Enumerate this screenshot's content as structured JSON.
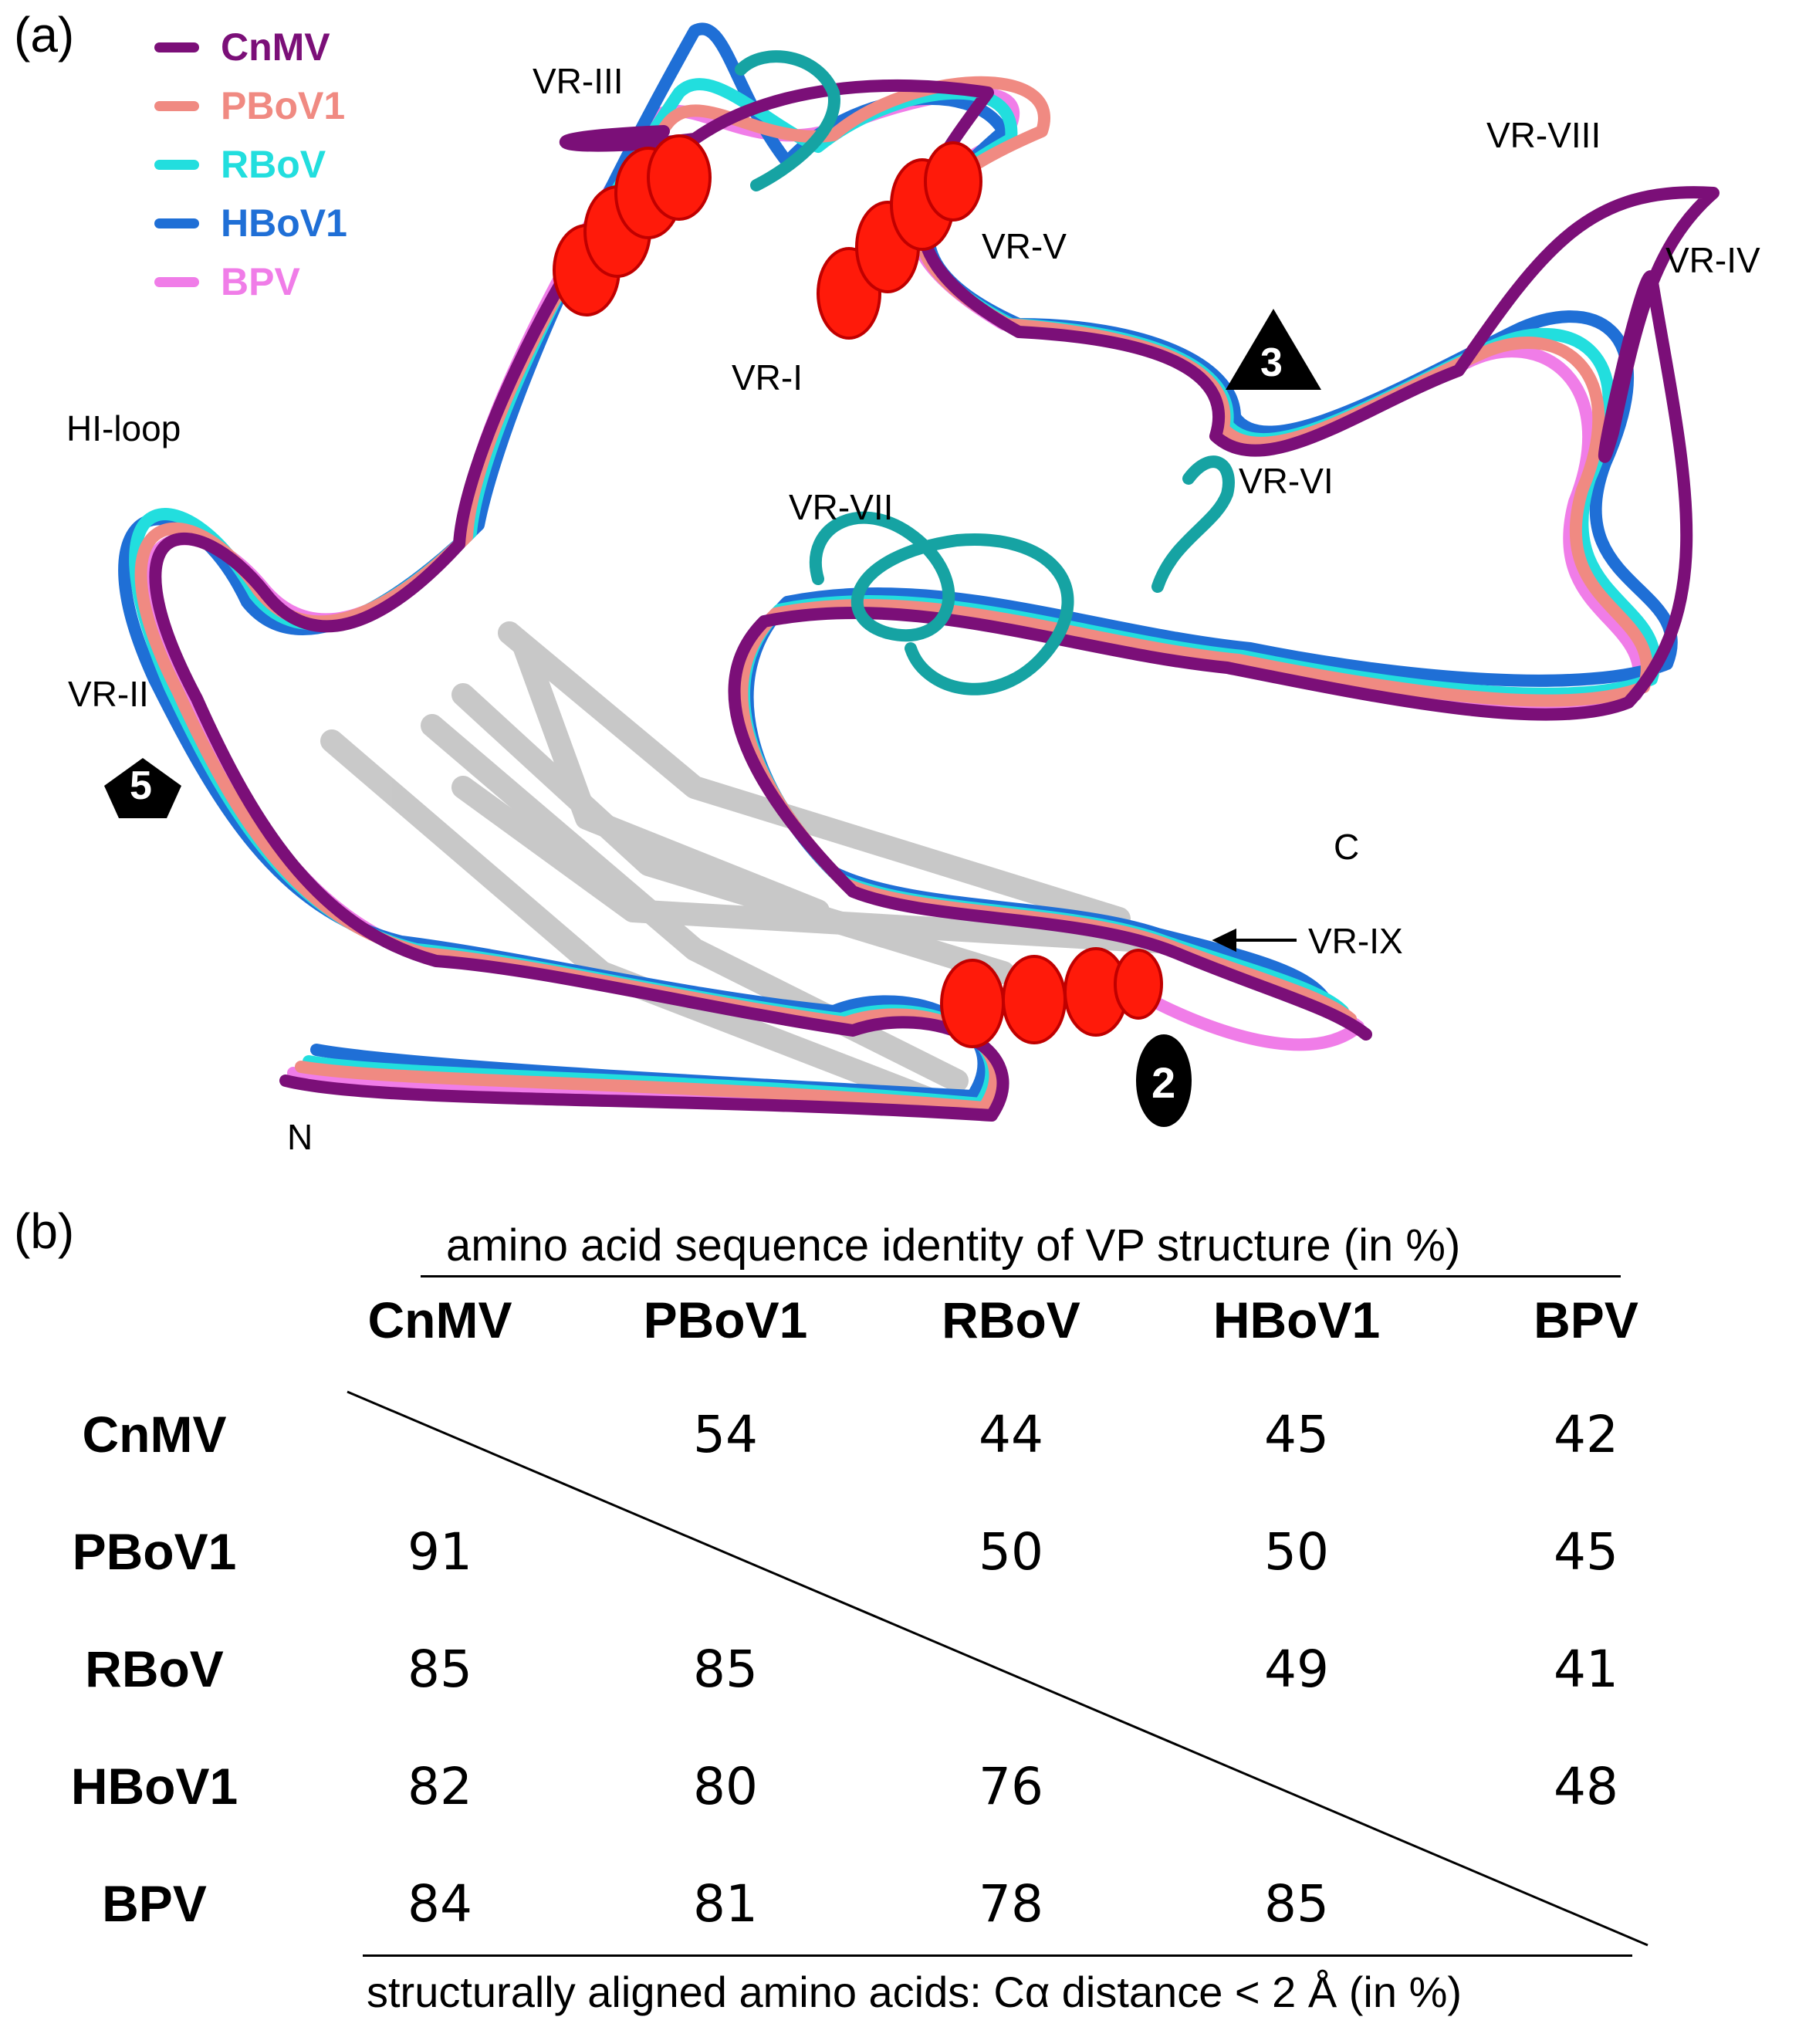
{
  "panel_a": {
    "label": "(a)",
    "legend": [
      {
        "name": "CnMV",
        "color": "#7b0f78"
      },
      {
        "name": "PBoV1",
        "color": "#f08a82"
      },
      {
        "name": "RBoV",
        "color": "#22dede"
      },
      {
        "name": "HBoV1",
        "color": "#1f6fd6"
      },
      {
        "name": "BPV",
        "color": "#f07de8"
      }
    ],
    "annotations": {
      "vr_iii": "VR-III",
      "vr_v": "VR-V",
      "vr_i": "VR-I",
      "vr_viii": "VR-VIII",
      "vr_iv": "VR-IV",
      "hi_loop": "HI-loop",
      "vr_vii": "VR-VII",
      "vr_vi": "VR-VI",
      "vr_ii": "VR-II",
      "c_term": "C",
      "vr_ix": "VR-IX",
      "n_term": "N"
    },
    "symmetry": {
      "five_fold": "5",
      "three_fold": "3",
      "two_fold": "2"
    },
    "colors": {
      "helix": "#ff1a0a",
      "sheet": "#c8c8c8",
      "teal": "#16a3a3"
    }
  },
  "panel_b": {
    "label": "(b)",
    "top_header": "amino acid sequence identity of VP structure (in %)",
    "bottom_header": "structurally aligned amino acids: Cα distance < 2 Å (in %)",
    "columns": [
      "CnMV",
      "PBoV1",
      "RBoV",
      "HBoV1",
      "BPV"
    ],
    "rows": [
      {
        "name": "CnMV",
        "cells": [
          "",
          "54",
          "44",
          "45",
          "42"
        ]
      },
      {
        "name": "PBoV1",
        "cells": [
          "91",
          "",
          "50",
          "50",
          "45"
        ]
      },
      {
        "name": "RBoV",
        "cells": [
          "85",
          "85",
          "",
          "49",
          "41"
        ]
      },
      {
        "name": "HBoV1",
        "cells": [
          "82",
          "80",
          "76",
          "",
          "48"
        ]
      },
      {
        "name": "BPV",
        "cells": [
          "84",
          "81",
          "78",
          "85",
          ""
        ]
      }
    ]
  }
}
